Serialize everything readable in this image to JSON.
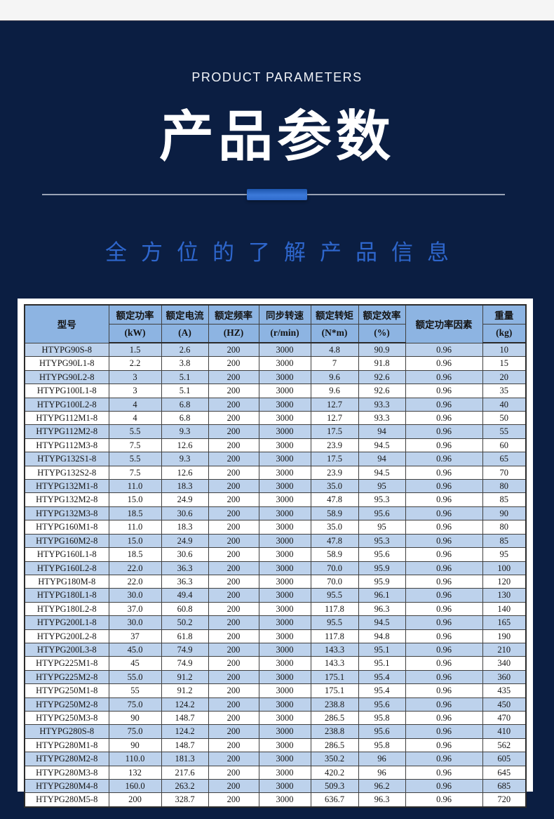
{
  "hero": {
    "eyebrow": "PRODUCT PARAMETERS",
    "title": "产品参数",
    "subtitle": "全方位的了解产品信息"
  },
  "colors": {
    "navy": "#0b1e42",
    "accent": "#2e66cc",
    "table_header_bg": "#8db4e2",
    "table_stripe_bg": "#bdd2ec",
    "divider_gray": "#9aa3b5",
    "bar_blue_top": "#1d55ad",
    "bar_blue_bottom": "#3c7ad9"
  },
  "table": {
    "columns": [
      {
        "label": "型号",
        "unit": ""
      },
      {
        "label": "额定功率",
        "unit": "(kW)"
      },
      {
        "label": "额定电流",
        "unit": "(A)"
      },
      {
        "label": "额定频率",
        "unit": "(HZ)"
      },
      {
        "label": "同步转速",
        "unit": "(r/min)"
      },
      {
        "label": "额定转矩",
        "unit": "(N*m)"
      },
      {
        "label": "额定效率",
        "unit": "(%)"
      },
      {
        "label": "额定功率因素",
        "unit": ""
      },
      {
        "label": "重量",
        "unit": "(kg)"
      }
    ],
    "rows": [
      [
        "HTYPG90S-8",
        "1.5",
        "2.6",
        "200",
        "3000",
        "4.8",
        "90.9",
        "0.96",
        "10"
      ],
      [
        "HTYPG90L1-8",
        "2.2",
        "3.8",
        "200",
        "3000",
        "7",
        "91.8",
        "0.96",
        "15"
      ],
      [
        "HTYPG90L2-8",
        "3",
        "5.1",
        "200",
        "3000",
        "9.6",
        "92.6",
        "0.96",
        "20"
      ],
      [
        "HTYPG100L1-8",
        "3",
        "5.1",
        "200",
        "3000",
        "9.6",
        "92.6",
        "0.96",
        "35"
      ],
      [
        "HTYPG100L2-8",
        "4",
        "6.8",
        "200",
        "3000",
        "12.7",
        "93.3",
        "0.96",
        "40"
      ],
      [
        "HTYPG112M1-8",
        "4",
        "6.8",
        "200",
        "3000",
        "12.7",
        "93.3",
        "0.96",
        "50"
      ],
      [
        "HTYPG112M2-8",
        "5.5",
        "9.3",
        "200",
        "3000",
        "17.5",
        "94",
        "0.96",
        "55"
      ],
      [
        "HTYPG112M3-8",
        "7.5",
        "12.6",
        "200",
        "3000",
        "23.9",
        "94.5",
        "0.96",
        "60"
      ],
      [
        "HTYPG132S1-8",
        "5.5",
        "9.3",
        "200",
        "3000",
        "17.5",
        "94",
        "0.96",
        "65"
      ],
      [
        "HTYPG132S2-8",
        "7.5",
        "12.6",
        "200",
        "3000",
        "23.9",
        "94.5",
        "0.96",
        "70"
      ],
      [
        "HTYPG132M1-8",
        "11.0",
        "18.3",
        "200",
        "3000",
        "35.0",
        "95",
        "0.96",
        "80"
      ],
      [
        "HTYPG132M2-8",
        "15.0",
        "24.9",
        "200",
        "3000",
        "47.8",
        "95.3",
        "0.96",
        "85"
      ],
      [
        "HTYPG132M3-8",
        "18.5",
        "30.6",
        "200",
        "3000",
        "58.9",
        "95.6",
        "0.96",
        "90"
      ],
      [
        "HTYPG160M1-8",
        "11.0",
        "18.3",
        "200",
        "3000",
        "35.0",
        "95",
        "0.96",
        "80"
      ],
      [
        "HTYPG160M2-8",
        "15.0",
        "24.9",
        "200",
        "3000",
        "47.8",
        "95.3",
        "0.96",
        "85"
      ],
      [
        "HTYPG160L1-8",
        "18.5",
        "30.6",
        "200",
        "3000",
        "58.9",
        "95.6",
        "0.96",
        "95"
      ],
      [
        "HTYPG160L2-8",
        "22.0",
        "36.3",
        "200",
        "3000",
        "70.0",
        "95.9",
        "0.96",
        "100"
      ],
      [
        "HTYPG180M-8",
        "22.0",
        "36.3",
        "200",
        "3000",
        "70.0",
        "95.9",
        "0.96",
        "120"
      ],
      [
        "HTYPG180L1-8",
        "30.0",
        "49.4",
        "200",
        "3000",
        "95.5",
        "96.1",
        "0.96",
        "130"
      ],
      [
        "HTYPG180L2-8",
        "37.0",
        "60.8",
        "200",
        "3000",
        "117.8",
        "96.3",
        "0.96",
        "140"
      ],
      [
        "HTYPG200L1-8",
        "30.0",
        "50.2",
        "200",
        "3000",
        "95.5",
        "94.5",
        "0.96",
        "165"
      ],
      [
        "HTYPG200L2-8",
        "37",
        "61.8",
        "200",
        "3000",
        "117.8",
        "94.8",
        "0.96",
        "190"
      ],
      [
        "HTYPG200L3-8",
        "45.0",
        "74.9",
        "200",
        "3000",
        "143.3",
        "95.1",
        "0.96",
        "210"
      ],
      [
        "HTYPG225M1-8",
        "45",
        "74.9",
        "200",
        "3000",
        "143.3",
        "95.1",
        "0.96",
        "340"
      ],
      [
        "HTYPG225M2-8",
        "55.0",
        "91.2",
        "200",
        "3000",
        "175.1",
        "95.4",
        "0.96",
        "360"
      ],
      [
        "HTYPG250M1-8",
        "55",
        "91.2",
        "200",
        "3000",
        "175.1",
        "95.4",
        "0.96",
        "435"
      ],
      [
        "HTYPG250M2-8",
        "75.0",
        "124.2",
        "200",
        "3000",
        "238.8",
        "95.6",
        "0.96",
        "450"
      ],
      [
        "HTYPG250M3-8",
        "90",
        "148.7",
        "200",
        "3000",
        "286.5",
        "95.8",
        "0.96",
        "470"
      ],
      [
        "HTYPG280S-8",
        "75.0",
        "124.2",
        "200",
        "3000",
        "238.8",
        "95.6",
        "0.96",
        "410"
      ],
      [
        "HTYPG280M1-8",
        "90",
        "148.7",
        "200",
        "3000",
        "286.5",
        "95.8",
        "0.96",
        "562"
      ],
      [
        "HTYPG280M2-8",
        "110.0",
        "181.3",
        "200",
        "3000",
        "350.2",
        "96",
        "0.96",
        "605"
      ],
      [
        "HTYPG280M3-8",
        "132",
        "217.6",
        "200",
        "3000",
        "420.2",
        "96",
        "0.96",
        "645"
      ],
      [
        "HTYPG280M4-8",
        "160.0",
        "263.2",
        "200",
        "3000",
        "509.3",
        "96.2",
        "0.96",
        "685"
      ],
      [
        "HTYPG280M5-8",
        "200",
        "328.7",
        "200",
        "3000",
        "636.7",
        "96.3",
        "0.96",
        "720"
      ]
    ]
  }
}
